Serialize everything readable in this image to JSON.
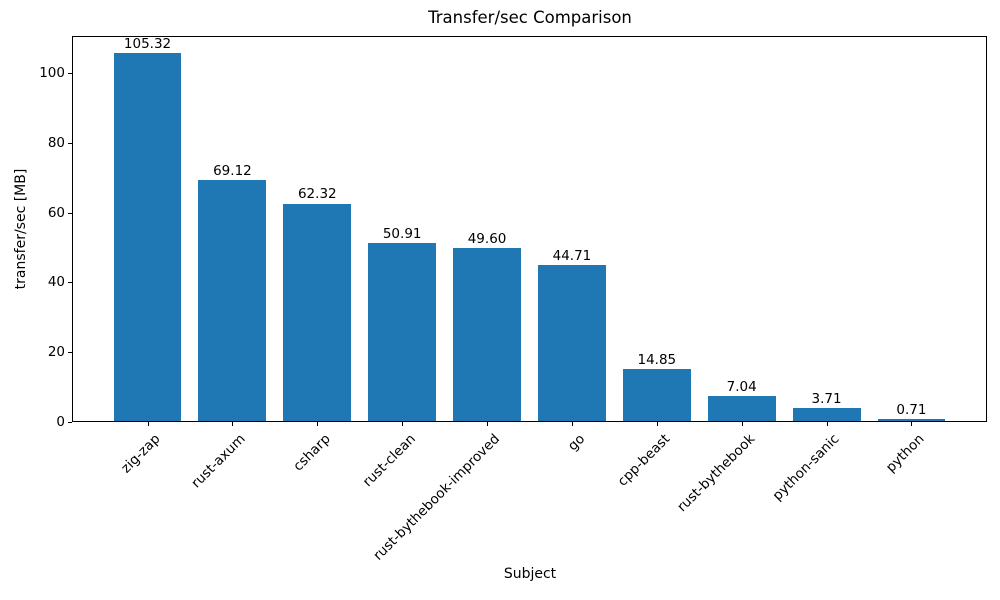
{
  "chart_data": {
    "type": "bar",
    "title": "Transfer/sec Comparison",
    "xlabel": "Subject",
    "ylabel": "transfer/sec [MB]",
    "categories": [
      "zig-zap",
      "rust-axum",
      "csharp",
      "rust-clean",
      "rust-bythebook-improved",
      "go",
      "cpp-beast",
      "rust-bythebook",
      "python-sanic",
      "python"
    ],
    "values": [
      105.32,
      69.12,
      62.32,
      50.91,
      49.6,
      44.71,
      14.85,
      7.04,
      3.71,
      0.71
    ],
    "value_labels": [
      "105.32",
      "69.12",
      "62.32",
      "50.91",
      "49.60",
      "44.71",
      "14.85",
      "7.04",
      "3.71",
      "0.71"
    ],
    "yticks": [
      0,
      20,
      40,
      60,
      80,
      100
    ],
    "ylim": [
      0,
      110.6
    ],
    "bar_color": "#1f77b4",
    "axis_color": "#000000",
    "grid": false,
    "legend": false,
    "x_tick_label_rotation": 45
  }
}
